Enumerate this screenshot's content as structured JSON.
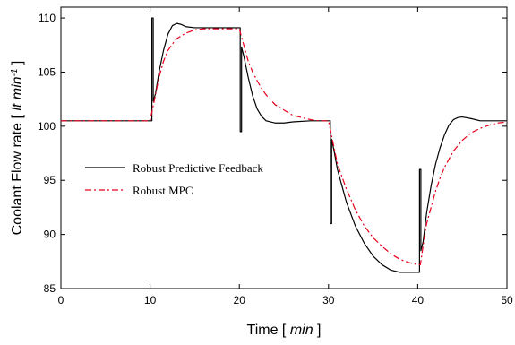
{
  "chart_data": {
    "type": "line",
    "xlabel": {
      "prefix": "Time [ ",
      "unit": "min",
      "suffix": " ]"
    },
    "ylabel": {
      "prefix": "Coolant Flow rate [ ",
      "unit": "lt min",
      "sup": "-1",
      "suffix": " ]"
    },
    "xlim": [
      0,
      50
    ],
    "ylim": [
      85,
      111
    ],
    "xticks": [
      0,
      10,
      20,
      30,
      40,
      50
    ],
    "yticks": [
      85,
      90,
      95,
      100,
      105,
      110
    ],
    "grid": false,
    "legend_position": "center-left",
    "series": [
      {
        "name": "Robust Predictive Feedback",
        "color": "#000000",
        "style": "solid",
        "x": [
          0,
          10.2,
          10.2,
          10.35,
          10.35,
          10.6,
          11,
          11.5,
          12,
          12.5,
          13,
          13.5,
          14,
          15,
          16,
          17,
          18,
          19,
          20.1,
          20.1,
          20.25,
          20.25,
          20.5,
          21,
          21.5,
          22,
          22.5,
          23,
          24,
          25,
          26,
          28,
          30,
          30.2,
          30.2,
          30.35,
          30.35,
          30.6,
          31,
          32,
          33,
          34,
          35,
          36,
          37,
          38,
          39,
          40.2,
          40.2,
          40.35,
          40.35,
          40.6,
          41,
          41.5,
          42,
          42.5,
          43,
          43.5,
          44,
          44.5,
          45,
          46,
          47,
          48,
          50
        ],
        "y": [
          100.5,
          100.5,
          110,
          110,
          102.3,
          103,
          105,
          107,
          108.5,
          109.3,
          109.5,
          109.4,
          109.2,
          109.1,
          109.1,
          109.1,
          109.1,
          109.1,
          109.1,
          99.5,
          99.5,
          107.3,
          106.5,
          104.5,
          102.8,
          101.6,
          100.9,
          100.5,
          100.3,
          100.3,
          100.4,
          100.5,
          100.5,
          100.5,
          91,
          91,
          98.8,
          97.8,
          96,
          93,
          90.8,
          89.2,
          88,
          87.2,
          86.7,
          86.5,
          86.5,
          86.5,
          96,
          96,
          88.5,
          89.3,
          92,
          94.5,
          96.5,
          98,
          99.2,
          100.1,
          100.6,
          100.8,
          100.85,
          100.7,
          100.5,
          100.5,
          100.5
        ]
      },
      {
        "name": "Robust MPC",
        "color": "#e8001c",
        "style": "dashdot",
        "x": [
          0,
          10,
          10.5,
          11,
          11.5,
          12,
          12.5,
          13,
          14,
          15,
          16,
          17,
          18,
          19,
          20,
          20.5,
          21,
          21.5,
          22,
          22.5,
          23,
          24,
          25,
          26,
          27,
          28,
          29,
          30,
          30.5,
          31,
          32,
          33,
          34,
          35,
          36,
          37,
          38,
          39,
          40,
          40.3,
          40.7,
          41,
          41.5,
          42,
          42.5,
          43,
          44,
          45,
          46,
          47,
          48,
          49,
          50
        ],
        "y": [
          100.5,
          100.5,
          102.5,
          104.5,
          106,
          107,
          107.6,
          108.1,
          108.6,
          108.9,
          109,
          109,
          109,
          109,
          109,
          107.5,
          106,
          105,
          104.2,
          103.5,
          102.9,
          102,
          101.5,
          101,
          100.8,
          100.6,
          100.5,
          100.5,
          98.5,
          96.5,
          94.2,
          92.3,
          90.8,
          89.7,
          88.9,
          88.2,
          87.7,
          87.4,
          87.2,
          87.2,
          89.5,
          91,
          92.5,
          94,
          95.2,
          96.2,
          97.7,
          98.7,
          99.4,
          99.8,
          100.1,
          100.3,
          100.4
        ]
      }
    ]
  }
}
